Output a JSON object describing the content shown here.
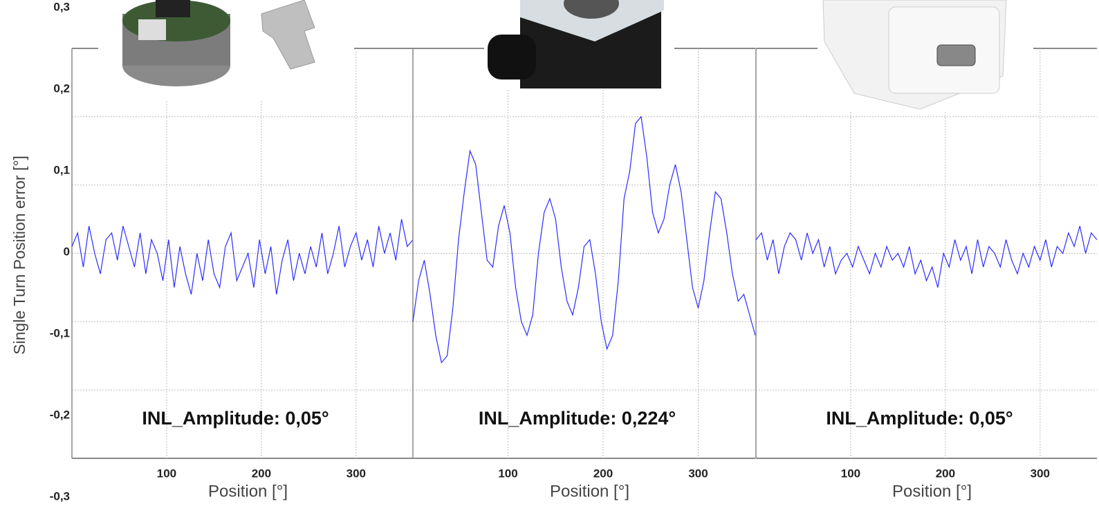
{
  "chart_data": [
    {
      "type": "line",
      "ylabel": "Single Turn Position error [°]",
      "xlabel": "Position [°]",
      "annotation": "INL_Amplitude: 0,05°",
      "xlim": [
        0,
        360
      ],
      "ylim": [
        -0.3,
        0.3
      ],
      "xticks": [
        100,
        200,
        300
      ],
      "yticks": [
        {
          "value": -0.3,
          "label": "-0,3"
        },
        {
          "value": -0.2,
          "label": "-0,2"
        },
        {
          "value": -0.1,
          "label": "-0,1"
        },
        0,
        {
          "value": 0.1,
          "label": "0,1"
        },
        {
          "value": 0.2,
          "label": "0,2"
        },
        {
          "value": 0.3,
          "label": "0,3"
        }
      ],
      "grid": true,
      "x": [
        0,
        6,
        12,
        18,
        24,
        30,
        36,
        42,
        48,
        54,
        60,
        66,
        72,
        78,
        84,
        90,
        96,
        102,
        108,
        114,
        120,
        126,
        132,
        138,
        144,
        150,
        156,
        162,
        168,
        174,
        180,
        186,
        192,
        198,
        204,
        210,
        216,
        222,
        228,
        234,
        240,
        246,
        252,
        258,
        264,
        270,
        276,
        282,
        288,
        294,
        300,
        306,
        312,
        318,
        324,
        330,
        336,
        342,
        348,
        354,
        360
      ],
      "series": [
        {
          "color": "#2a2aff",
          "values": [
            0.01,
            0.03,
            -0.02,
            0.04,
            0.0,
            -0.03,
            0.02,
            0.03,
            -0.01,
            0.04,
            0.01,
            -0.02,
            0.03,
            -0.03,
            0.02,
            0.0,
            -0.04,
            0.02,
            -0.05,
            0.01,
            -0.03,
            -0.06,
            0.0,
            -0.04,
            0.02,
            -0.03,
            -0.05,
            0.01,
            0.03,
            -0.04,
            -0.02,
            0.0,
            -0.05,
            0.02,
            -0.03,
            0.01,
            -0.06,
            -0.01,
            0.02,
            -0.04,
            0.0,
            -0.03,
            0.01,
            -0.02,
            0.03,
            -0.03,
            0.0,
            0.04,
            -0.02,
            0.01,
            0.03,
            -0.01,
            0.02,
            -0.02,
            0.04,
            0.0,
            0.03,
            -0.01,
            0.05,
            0.01,
            0.02
          ]
        }
      ]
    },
    {
      "type": "line",
      "xlabel": "Position [°]",
      "annotation": "INL_Amplitude: 0,224°",
      "xlim": [
        0,
        360
      ],
      "ylim": [
        -0.3,
        0.3
      ],
      "xticks": [
        100,
        200,
        300
      ],
      "yticks": [
        -0.3,
        -0.2,
        -0.1,
        0,
        0.1,
        0.2,
        0.3
      ],
      "grid": true,
      "x": [
        0,
        6,
        12,
        18,
        24,
        30,
        36,
        42,
        48,
        54,
        60,
        66,
        72,
        78,
        84,
        90,
        96,
        102,
        108,
        114,
        120,
        126,
        132,
        138,
        144,
        150,
        156,
        162,
        168,
        174,
        180,
        186,
        192,
        198,
        204,
        210,
        216,
        222,
        228,
        234,
        240,
        246,
        252,
        258,
        264,
        270,
        276,
        282,
        288,
        294,
        300,
        306,
        312,
        318,
        324,
        330,
        336,
        342,
        348,
        354,
        360
      ],
      "series": [
        {
          "color": "#2a2aff",
          "values": [
            -0.1,
            -0.04,
            -0.01,
            -0.06,
            -0.12,
            -0.16,
            -0.15,
            -0.08,
            0.02,
            0.09,
            0.15,
            0.13,
            0.06,
            -0.01,
            -0.02,
            0.04,
            0.07,
            0.03,
            -0.05,
            -0.1,
            -0.12,
            -0.09,
            0.0,
            0.06,
            0.08,
            0.05,
            -0.02,
            -0.07,
            -0.09,
            -0.05,
            0.01,
            0.02,
            -0.03,
            -0.1,
            -0.14,
            -0.12,
            -0.04,
            0.08,
            0.12,
            0.19,
            0.2,
            0.14,
            0.06,
            0.03,
            0.05,
            0.1,
            0.13,
            0.09,
            0.02,
            -0.05,
            -0.08,
            -0.04,
            0.03,
            0.09,
            0.08,
            0.03,
            -0.03,
            -0.07,
            -0.06,
            -0.09,
            -0.12
          ]
        }
      ]
    },
    {
      "type": "line",
      "xlabel": "Position [°]",
      "annotation": "INL_Amplitude: 0,05°",
      "xlim": [
        0,
        360
      ],
      "ylim": [
        -0.3,
        0.3
      ],
      "xticks": [
        100,
        200,
        300
      ],
      "yticks": [
        -0.3,
        -0.2,
        -0.1,
        0,
        0.1,
        0.2,
        0.3
      ],
      "grid": true,
      "x": [
        0,
        6,
        12,
        18,
        24,
        30,
        36,
        42,
        48,
        54,
        60,
        66,
        72,
        78,
        84,
        90,
        96,
        102,
        108,
        114,
        120,
        126,
        132,
        138,
        144,
        150,
        156,
        162,
        168,
        174,
        180,
        186,
        192,
        198,
        204,
        210,
        216,
        222,
        228,
        234,
        240,
        246,
        252,
        258,
        264,
        270,
        276,
        282,
        288,
        294,
        300,
        306,
        312,
        318,
        324,
        330,
        336,
        342,
        348,
        354,
        360
      ],
      "series": [
        {
          "color": "#2a2aff",
          "values": [
            0.02,
            0.03,
            -0.01,
            0.02,
            -0.03,
            0.01,
            0.03,
            0.02,
            -0.01,
            0.03,
            0.0,
            0.02,
            -0.02,
            0.01,
            -0.03,
            -0.01,
            0.0,
            -0.02,
            0.01,
            -0.01,
            -0.03,
            0.0,
            -0.02,
            0.01,
            -0.01,
            0.0,
            -0.02,
            0.01,
            -0.03,
            -0.01,
            -0.04,
            -0.02,
            -0.05,
            0.0,
            -0.02,
            0.02,
            -0.01,
            0.01,
            -0.03,
            0.02,
            -0.02,
            0.01,
            0.0,
            -0.02,
            0.02,
            -0.01,
            -0.03,
            0.0,
            -0.02,
            0.01,
            -0.01,
            0.02,
            -0.02,
            0.01,
            0.0,
            0.03,
            0.01,
            0.04,
            0.0,
            0.03,
            0.02
          ]
        }
      ]
    }
  ]
}
